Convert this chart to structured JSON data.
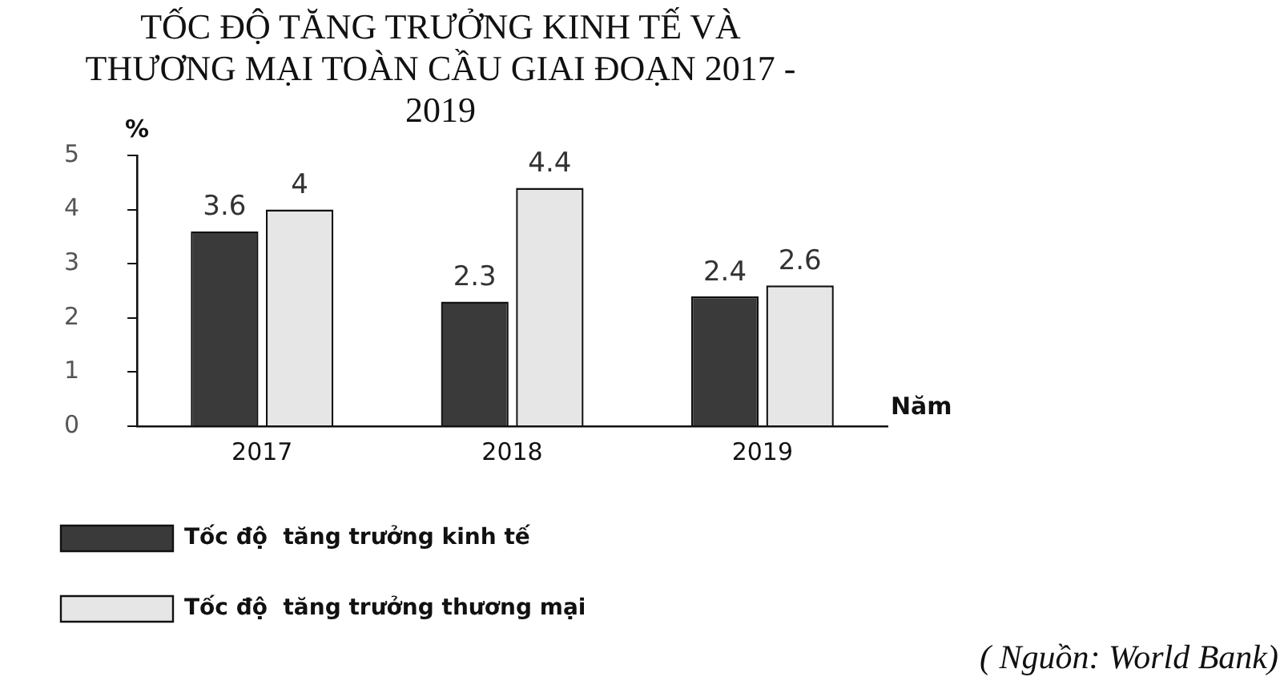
{
  "chart_data": {
    "type": "bar",
    "title": "TỐC ĐỘ TĂNG TRƯỞNG KINH TẾ VÀ THƯƠNG MẠI TOÀN CẦU GIAI ĐOẠN 2017 - 2019",
    "xlabel": "Năm",
    "ylabel": "%",
    "categories": [
      "2017",
      "2018",
      "2019"
    ],
    "series": [
      {
        "name": "Tốc độ  tăng trưởng kinh tế",
        "color": "#3a3a3a",
        "values": [
          3.6,
          2.3,
          2.4
        ]
      },
      {
        "name": "Tốc độ  tăng trưởng thương mại",
        "color": "#e6e6e6",
        "values": [
          4,
          4.4,
          2.6
        ]
      }
    ],
    "ylim": [
      0,
      5
    ],
    "yticks": [
      0,
      1,
      2,
      3,
      4,
      5
    ],
    "grid": false,
    "legend": "bottom left",
    "data_labels": true,
    "annotations": [
      "( Nguồn: World Bank)"
    ]
  }
}
